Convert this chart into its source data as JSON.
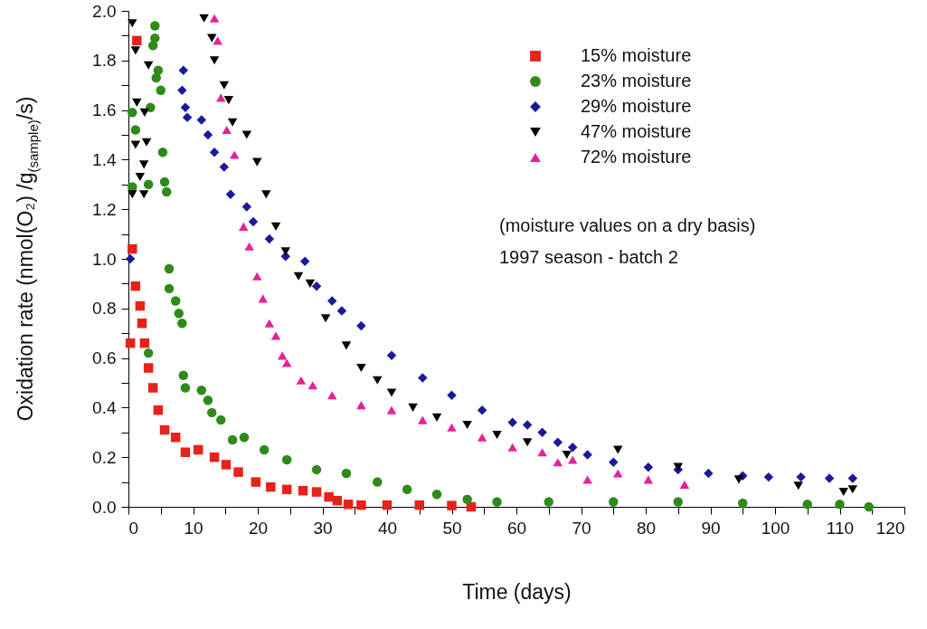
{
  "chart_data": {
    "type": "scatter",
    "xlabel": "Time (days)",
    "ylabel": "Oxidation rate (nmol(O₂) /g$_{(sample)}$/s)",
    "xlim": [
      0,
      120
    ],
    "ylim": [
      0,
      2
    ],
    "xticks": [
      0,
      {
        "value": 5,
        "label": null
      },
      10,
      {
        "value": 15,
        "label": null
      },
      20,
      {
        "value": 25,
        "label": null
      },
      30,
      {
        "value": 35,
        "label": null
      },
      40,
      {
        "value": 45,
        "label": null
      },
      50,
      {
        "value": 55,
        "label": null
      },
      60,
      {
        "value": 65,
        "label": null
      },
      70,
      {
        "value": 75,
        "label": null
      },
      80,
      {
        "value": 85,
        "label": null
      },
      90,
      {
        "value": 95,
        "label": null
      },
      100,
      {
        "value": 105,
        "label": null
      },
      110,
      {
        "value": 115,
        "label": null
      },
      120
    ],
    "yticks": [
      {
        "value": 0,
        "label": "0.0"
      },
      {
        "value": 0.1,
        "label": null
      },
      0.2,
      {
        "value": 0.3,
        "label": null
      },
      0.4,
      {
        "value": 0.5,
        "label": null
      },
      0.6,
      {
        "value": 0.7,
        "label": null
      },
      0.8,
      {
        "value": 0.9,
        "label": null
      },
      {
        "value": 1,
        "label": "1.0"
      },
      {
        "value": 1.1,
        "label": null
      },
      1.2,
      {
        "value": 1.3,
        "label": null
      },
      1.4,
      {
        "value": 1.5,
        "label": null
      },
      1.6,
      {
        "value": 1.7,
        "label": null
      },
      1.8,
      {
        "value": 1.9,
        "label": null
      },
      {
        "value": 2,
        "label": "2.0"
      }
    ],
    "legend": "top right",
    "annotations": [
      "(moisture values on a dry basis)",
      "1997 season - batch 2"
    ],
    "series": [
      {
        "name": "15% moisture",
        "color": "#e8211b",
        "marker": "square",
        "x": [
          1.3,
          0.6,
          1.1,
          0.3,
          1.8,
          2.1,
          2.5,
          3.1,
          3.8,
          4.6,
          5.6,
          7.3,
          8.8,
          10.8,
          13.3,
          15.1,
          17,
          19.7,
          22,
          24.5,
          27,
          29.1,
          31,
          32.3,
          34,
          36,
          40,
          45,
          50,
          53
        ],
        "values": [
          1.88,
          1.04,
          0.89,
          0.66,
          0.81,
          0.74,
          0.66,
          0.56,
          0.48,
          0.39,
          0.31,
          0.28,
          0.22,
          0.23,
          0.2,
          0.17,
          0.14,
          0.1,
          0.08,
          0.07,
          0.065,
          0.06,
          0.04,
          0.025,
          0.01,
          0.007,
          0.007,
          0.007,
          0.005,
          0
        ]
      },
      {
        "name": "23% moisture",
        "color": "#2e8b1a",
        "marker": "circle",
        "x": [
          4.1,
          4.1,
          3.8,
          4.6,
          4.3,
          5,
          3.4,
          0.6,
          1.1,
          5.3,
          3.1,
          5.6,
          5.9,
          0.6,
          6.3,
          6.3,
          7.3,
          7.8,
          8.3,
          3.1,
          8.5,
          8.8,
          11.3,
          12.3,
          12.9,
          14.3,
          16.1,
          17.9,
          21,
          24.5,
          29.1,
          33.7,
          38.5,
          43.1,
          47.7,
          52.4,
          57,
          65,
          75,
          85,
          95,
          105,
          110,
          114.5
        ],
        "values": [
          1.94,
          1.89,
          1.86,
          1.76,
          1.73,
          1.68,
          1.61,
          1.59,
          1.52,
          1.43,
          1.3,
          1.31,
          1.27,
          1.29,
          0.96,
          0.88,
          0.83,
          0.78,
          0.74,
          0.62,
          0.53,
          0.48,
          0.47,
          0.43,
          0.38,
          0.35,
          0.27,
          0.28,
          0.23,
          0.19,
          0.15,
          0.135,
          0.1,
          0.07,
          0.05,
          0.03,
          0.02,
          0.02,
          0.02,
          0.02,
          0.015,
          0.01,
          0.01,
          0
        ]
      },
      {
        "name": "29% moisture",
        "color": "#1a1a9a",
        "marker": "diamond",
        "x": [
          0.3,
          8.5,
          8.3,
          8.8,
          9.1,
          11.3,
          12.3,
          13.3,
          14.8,
          15.8,
          18.3,
          19.3,
          21.8,
          24.3,
          27.3,
          29.1,
          31.5,
          33,
          36,
          40.7,
          45.5,
          50,
          54.7,
          59.4,
          61.7,
          64,
          66.4,
          68.7,
          71,
          75,
          80.4,
          85,
          89.7,
          95,
          99,
          104,
          108.4,
          112
        ],
        "values": [
          1,
          1.76,
          1.68,
          1.61,
          1.57,
          1.56,
          1.5,
          1.43,
          1.37,
          1.26,
          1.21,
          1.15,
          1.08,
          1.01,
          0.99,
          0.89,
          0.83,
          0.79,
          0.73,
          0.61,
          0.52,
          0.45,
          0.39,
          0.34,
          0.33,
          0.3,
          0.26,
          0.24,
          0.21,
          0.18,
          0.16,
          0.15,
          0.135,
          0.125,
          0.12,
          0.12,
          0.115,
          0.115
        ]
      },
      {
        "name": "47% moisture",
        "color": "#000000",
        "marker": "triangle-down",
        "x": [
          0.6,
          1.1,
          3.1,
          1.3,
          2.5,
          1.1,
          2.8,
          2.4,
          1.8,
          0.6,
          2.4,
          11.7,
          12.9,
          13.3,
          14.8,
          15.5,
          16.1,
          18.3,
          19.9,
          21.3,
          22.8,
          24.3,
          26.3,
          28.1,
          30.5,
          33.7,
          36,
          38.5,
          40.7,
          44,
          47.7,
          52.4,
          57,
          61.7,
          67.8,
          75.7,
          85,
          94.4,
          103.6,
          110.6,
          112
        ],
        "values": [
          1.95,
          1.84,
          1.78,
          1.63,
          1.59,
          1.46,
          1.47,
          1.38,
          1.33,
          1.26,
          1.26,
          1.97,
          1.89,
          1.8,
          1.7,
          1.64,
          1.55,
          1.5,
          1.39,
          1.26,
          1.13,
          1.03,
          0.93,
          0.9,
          0.76,
          0.65,
          0.56,
          0.51,
          0.46,
          0.4,
          0.36,
          0.33,
          0.29,
          0.26,
          0.21,
          0.23,
          0.16,
          0.11,
          0.085,
          0.06,
          0.07
        ]
      },
      {
        "name": "72% moisture",
        "color": "#e8209a",
        "marker": "triangle",
        "x": [
          13.3,
          13.8,
          14.3,
          15.2,
          16.4,
          17.8,
          18.7,
          19.9,
          20.8,
          21.8,
          22.8,
          23.8,
          24.5,
          26.7,
          28.5,
          31.5,
          36,
          40.7,
          45.5,
          50,
          54.7,
          59.4,
          64,
          66.4,
          68.7,
          71,
          75.7,
          80.4,
          86
        ],
        "values": [
          1.97,
          1.88,
          1.65,
          1.52,
          1.42,
          1.13,
          1.05,
          0.93,
          0.84,
          0.74,
          0.69,
          0.61,
          0.58,
          0.51,
          0.49,
          0.45,
          0.41,
          0.39,
          0.35,
          0.32,
          0.28,
          0.24,
          0.22,
          0.18,
          0.19,
          0.11,
          0.135,
          0.11,
          0.09
        ]
      }
    ]
  }
}
